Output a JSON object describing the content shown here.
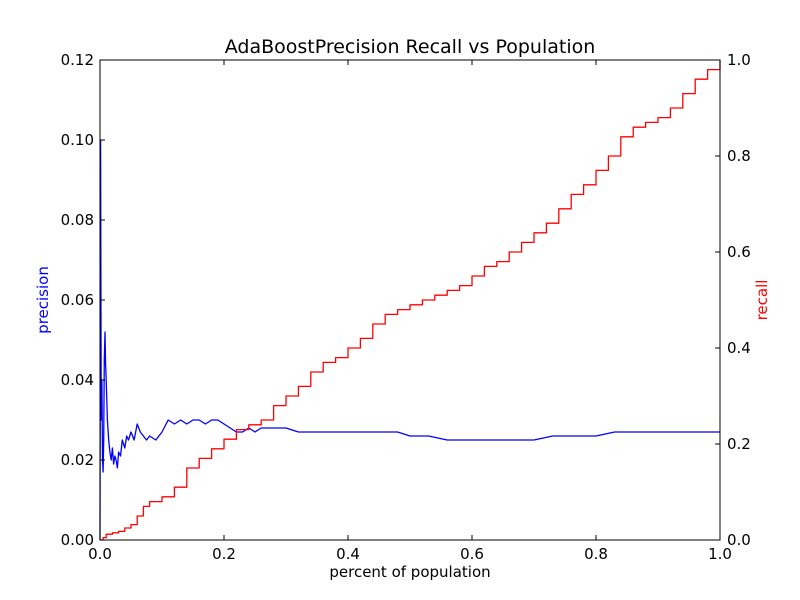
{
  "chart_data": {
    "type": "line",
    "title": "AdaBoostPrecision Recall vs Population",
    "xlabel": "percent of population",
    "ylabel_left": "precision",
    "ylabel_right": "recall",
    "xlim": [
      0.0,
      1.0
    ],
    "ylim_left": [
      0.0,
      0.12
    ],
    "ylim_right": [
      0.0,
      1.0
    ],
    "x_ticks": [
      "0.0",
      "0.2",
      "0.4",
      "0.6",
      "0.8",
      "1.0"
    ],
    "y_left_ticks": [
      "0.00",
      "0.02",
      "0.04",
      "0.06",
      "0.08",
      "0.10",
      "0.12"
    ],
    "y_right_ticks": [
      "0.0",
      "0.2",
      "0.4",
      "0.6",
      "0.8",
      "1.0"
    ],
    "grid": false,
    "colors": {
      "precision": "#0000ff",
      "recall": "#ff0000",
      "frame": "#000000"
    },
    "series": [
      {
        "key": "precision",
        "axis": "left",
        "color": "#0000ff",
        "x": [
          0.0,
          0.001,
          0.002,
          0.003,
          0.004,
          0.005,
          0.006,
          0.007,
          0.008,
          0.009,
          0.01,
          0.012,
          0.014,
          0.016,
          0.018,
          0.02,
          0.022,
          0.024,
          0.026,
          0.028,
          0.03,
          0.033,
          0.036,
          0.04,
          0.043,
          0.046,
          0.05,
          0.055,
          0.06,
          0.065,
          0.07,
          0.075,
          0.08,
          0.09,
          0.1,
          0.11,
          0.12,
          0.13,
          0.14,
          0.15,
          0.16,
          0.17,
          0.18,
          0.19,
          0.2,
          0.21,
          0.22,
          0.23,
          0.24,
          0.25,
          0.26,
          0.28,
          0.3,
          0.32,
          0.34,
          0.36,
          0.38,
          0.4,
          0.42,
          0.45,
          0.48,
          0.5,
          0.53,
          0.56,
          0.6,
          0.63,
          0.66,
          0.7,
          0.73,
          0.76,
          0.8,
          0.83,
          0.86,
          0.9,
          0.93,
          0.96,
          1.0
        ],
        "values": [
          0.0,
          0.1,
          0.03,
          0.04,
          0.02,
          0.017,
          0.025,
          0.045,
          0.052,
          0.044,
          0.04,
          0.03,
          0.025,
          0.022,
          0.02,
          0.023,
          0.019,
          0.021,
          0.02,
          0.018,
          0.022,
          0.021,
          0.025,
          0.023,
          0.026,
          0.025,
          0.027,
          0.025,
          0.029,
          0.027,
          0.026,
          0.025,
          0.026,
          0.025,
          0.027,
          0.03,
          0.029,
          0.03,
          0.029,
          0.03,
          0.03,
          0.029,
          0.03,
          0.03,
          0.029,
          0.028,
          0.027,
          0.027,
          0.028,
          0.027,
          0.028,
          0.028,
          0.028,
          0.027,
          0.027,
          0.027,
          0.027,
          0.027,
          0.027,
          0.027,
          0.027,
          0.026,
          0.026,
          0.025,
          0.025,
          0.025,
          0.025,
          0.025,
          0.026,
          0.026,
          0.026,
          0.027,
          0.027,
          0.027,
          0.027,
          0.027,
          0.027
        ]
      },
      {
        "key": "recall",
        "axis": "right",
        "color": "#ff0000",
        "x": [
          0.0,
          0.005,
          0.01,
          0.02,
          0.03,
          0.04,
          0.05,
          0.06,
          0.07,
          0.08,
          0.1,
          0.12,
          0.14,
          0.16,
          0.18,
          0.2,
          0.22,
          0.24,
          0.26,
          0.28,
          0.3,
          0.32,
          0.34,
          0.36,
          0.38,
          0.4,
          0.42,
          0.44,
          0.46,
          0.48,
          0.5,
          0.52,
          0.54,
          0.56,
          0.58,
          0.6,
          0.62,
          0.64,
          0.66,
          0.68,
          0.7,
          0.72,
          0.74,
          0.76,
          0.78,
          0.8,
          0.82,
          0.84,
          0.86,
          0.88,
          0.9,
          0.92,
          0.94,
          0.96,
          0.98,
          1.0
        ],
        "values": [
          0.0,
          0.005,
          0.012,
          0.015,
          0.018,
          0.025,
          0.032,
          0.05,
          0.07,
          0.08,
          0.09,
          0.11,
          0.15,
          0.17,
          0.19,
          0.21,
          0.23,
          0.24,
          0.25,
          0.28,
          0.3,
          0.32,
          0.35,
          0.37,
          0.38,
          0.4,
          0.42,
          0.45,
          0.47,
          0.48,
          0.49,
          0.5,
          0.51,
          0.52,
          0.53,
          0.55,
          0.57,
          0.58,
          0.6,
          0.62,
          0.64,
          0.66,
          0.69,
          0.72,
          0.74,
          0.77,
          0.8,
          0.84,
          0.86,
          0.87,
          0.88,
          0.9,
          0.93,
          0.96,
          0.98,
          1.0
        ]
      }
    ]
  }
}
